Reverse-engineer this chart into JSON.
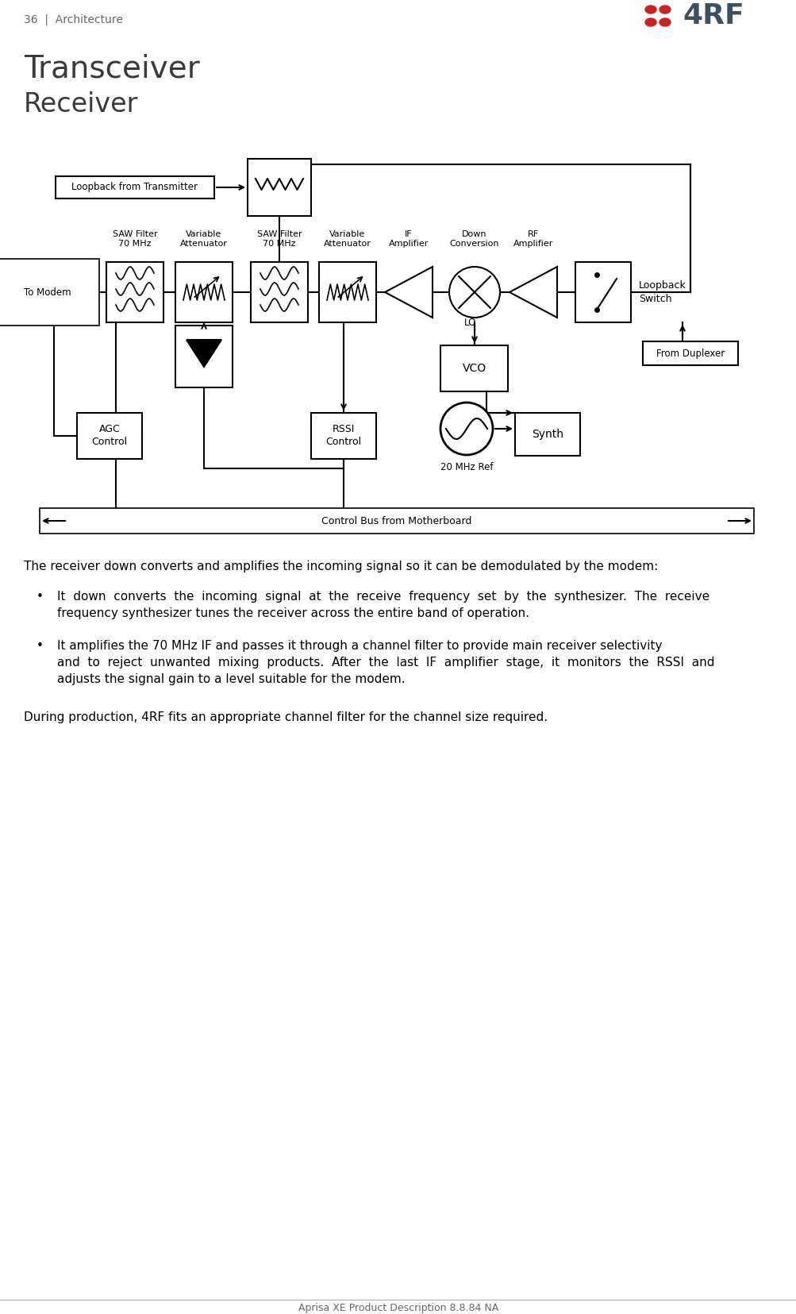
{
  "page_header": "36  |  Architecture",
  "title": "Transceiver",
  "subtitle": "Receiver",
  "page_footer": "Aprisa XE Product Description 8.8.84 NA",
  "body_text_1": "The receiver down converts and amplifies the incoming signal so it can be demodulated by the modem:",
  "bullet_1a": "It  down  converts  the  incoming  signal  at  the  receive  frequency  set  by  the  synthesizer.  The  receive",
  "bullet_1b": "frequency synthesizer tunes the receiver across the entire band of operation.",
  "bullet_2a": "It amplifies the 70 MHz IF and passes it through a channel filter to provide main receiver selectivity",
  "bullet_2b": "and  to  reject  unwanted  mixing  products.  After  the  last  IF  amplifier  stage,  it  monitors  the  RSSI  and",
  "bullet_2c": "adjusts the signal gain to a level suitable for the modem.",
  "body_text_2": "During production, 4RF fits an appropriate channel filter for the channel size required.",
  "bg_color": "#ffffff",
  "header_color": "#666666",
  "title_color": "#3a3a3a",
  "black": "#000000",
  "red": "#cc2222",
  "logo_dark": "#3d5060"
}
